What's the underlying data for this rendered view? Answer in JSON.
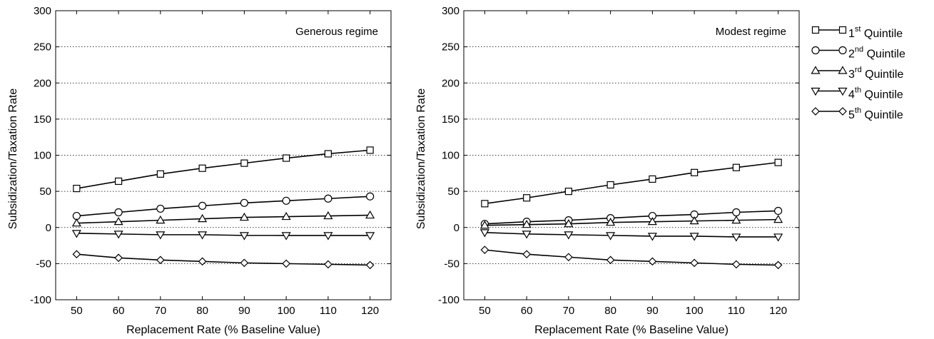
{
  "chart_data": [
    {
      "type": "line",
      "annotation": "Generous regime",
      "xlabel": "Replacement Rate (% Baseline Value)",
      "ylabel": "Subsidization/Taxation Rate",
      "x": [
        50,
        60,
        70,
        80,
        90,
        100,
        110,
        120
      ],
      "xticks": [
        50,
        60,
        70,
        80,
        90,
        100,
        110,
        120
      ],
      "xlim": [
        45,
        125
      ],
      "yticks": [
        -100,
        -50,
        0,
        50,
        100,
        150,
        200,
        250,
        300
      ],
      "ylim": [
        -100,
        300
      ],
      "grid": "horizontal dotted",
      "series": [
        {
          "name_base": "1",
          "name_sup": "st",
          "name_rest": " Quintile",
          "marker": "square",
          "values": [
            54,
            64,
            74,
            82,
            89,
            96,
            102,
            107
          ]
        },
        {
          "name_base": "2",
          "name_sup": "nd",
          "name_rest": " Quintile",
          "marker": "circle",
          "values": [
            16,
            21,
            26,
            30,
            34,
            37,
            40,
            43
          ]
        },
        {
          "name_base": "3",
          "name_sup": "rd",
          "name_rest": " Quintile",
          "marker": "triangle-up",
          "values": [
            6,
            8,
            10,
            12,
            14,
            15,
            16,
            17
          ]
        },
        {
          "name_base": "4",
          "name_sup": "th",
          "name_rest": " Quintile",
          "marker": "triangle-down",
          "values": [
            -8,
            -9,
            -10,
            -10,
            -11,
            -11,
            -11,
            -11
          ]
        },
        {
          "name_base": "5",
          "name_sup": "th",
          "name_rest": " Quintile",
          "marker": "diamond",
          "values": [
            -37,
            -42,
            -45,
            -47,
            -49,
            -50,
            -51,
            -52
          ]
        }
      ]
    },
    {
      "type": "line",
      "annotation": "Modest regime",
      "xlabel": "Replacement Rate (% Baseline Value)",
      "ylabel": "Subsidization/Taxation Rate",
      "x": [
        50,
        60,
        70,
        80,
        90,
        100,
        110,
        120
      ],
      "xticks": [
        50,
        60,
        70,
        80,
        90,
        100,
        110,
        120
      ],
      "xlim": [
        45,
        125
      ],
      "yticks": [
        -100,
        -50,
        0,
        50,
        100,
        150,
        200,
        250,
        300
      ],
      "ylim": [
        -100,
        300
      ],
      "grid": "horizontal dotted",
      "legend": "outside right",
      "series": [
        {
          "name_base": "1",
          "name_sup": "st",
          "name_rest": " Quintile",
          "marker": "square",
          "values": [
            33,
            41,
            50,
            59,
            67,
            76,
            83,
            90
          ]
        },
        {
          "name_base": "2",
          "name_sup": "nd",
          "name_rest": " Quintile",
          "marker": "circle",
          "values": [
            5,
            8,
            10,
            13,
            16,
            18,
            21,
            23
          ]
        },
        {
          "name_base": "3",
          "name_sup": "rd",
          "name_rest": " Quintile",
          "marker": "triangle-up",
          "values": [
            3,
            4,
            5,
            7,
            8,
            9,
            10,
            11
          ]
        },
        {
          "name_base": "4",
          "name_sup": "th",
          "name_rest": " Quintile",
          "marker": "triangle-down",
          "values": [
            -7,
            -9,
            -10,
            -11,
            -12,
            -12,
            -13,
            -13
          ]
        },
        {
          "name_base": "5",
          "name_sup": "th",
          "name_rest": " Quintile",
          "marker": "diamond",
          "values": [
            -31,
            -37,
            -41,
            -45,
            -47,
            -49,
            -51,
            -52
          ]
        }
      ]
    }
  ]
}
